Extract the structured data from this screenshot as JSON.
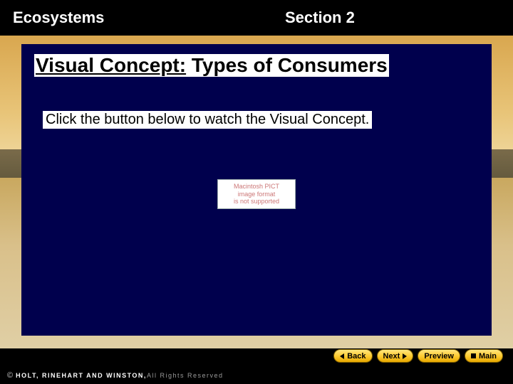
{
  "header": {
    "left": "Ecosystems",
    "right": "Section 2"
  },
  "content": {
    "title_prefix": "Visual Concept:",
    "title_rest": " Types of Consumers",
    "instruction": "Click the button below to watch the Visual Concept.",
    "placeholder_lines": [
      "Macintosh PICT",
      "image format",
      "is not supported"
    ]
  },
  "nav": {
    "back": "Back",
    "next": "Next",
    "preview": "Preview",
    "main": "Main"
  },
  "footer": {
    "copy_symbol": "©",
    "publisher": "HOLT, RINEHART AND WINSTON,",
    "rights": " All Rights Reserved"
  },
  "colors": {
    "page_bg": "#000000",
    "content_bg": "#00004d",
    "sky_top": "#d9a74f",
    "sky_bottom": "#f0d9a0",
    "ground_far": "#5a5238",
    "ground_near": "#d9c08a",
    "button_top": "#ffe680",
    "button_bottom": "#e6a800",
    "text_white": "#ffffff",
    "text_black": "#000000",
    "placeholder_text": "#c77"
  }
}
